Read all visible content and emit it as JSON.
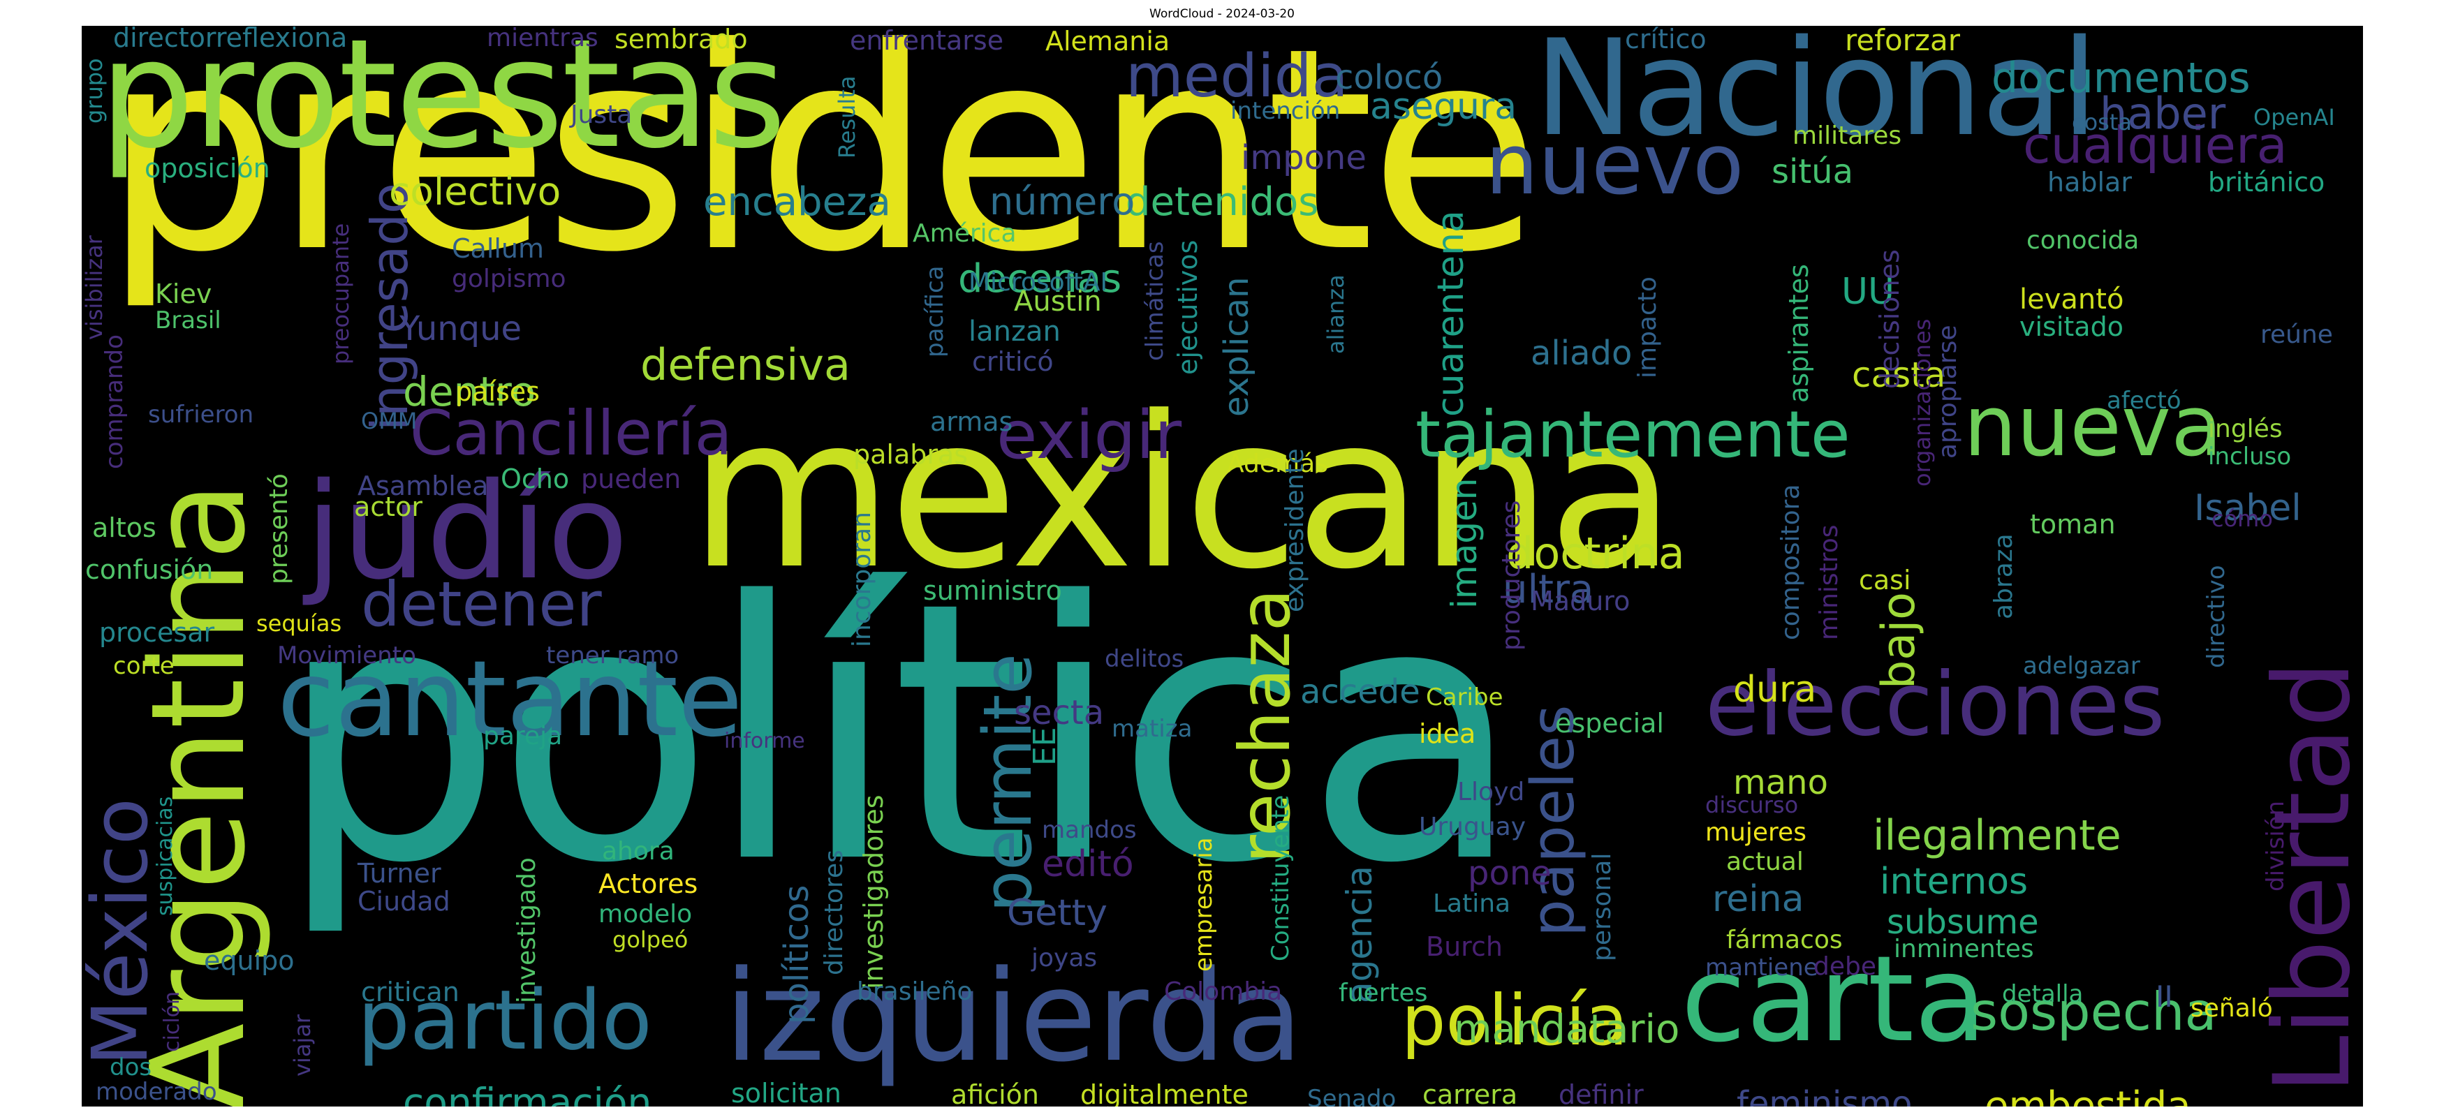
{
  "title": "WordCloud - 2024-03-20",
  "words": [
    {
      "text": "presidente",
      "color": "#e5e41a"
    },
    {
      "text": "política",
      "color": "#1f9a8a"
    },
    {
      "text": "mexicana",
      "color": "#c8e020"
    },
    {
      "text": "protestas",
      "color": "#8fd744"
    },
    {
      "text": "Nacional",
      "color": "#31688e"
    },
    {
      "text": "Argentina",
      "color": "#addc30"
    },
    {
      "text": "judío",
      "color": "#472d7b"
    },
    {
      "text": "cantante",
      "color": "#2c728e"
    },
    {
      "text": "carta",
      "color": "#35b779"
    },
    {
      "text": "izquierda",
      "color": "#3b528b"
    },
    {
      "text": "partido",
      "color": "#2c728e"
    },
    {
      "text": "elecciones",
      "color": "#472d7b"
    },
    {
      "text": "Libertad",
      "color": "#481a6c"
    },
    {
      "text": "nueva",
      "color": "#6ece58"
    },
    {
      "text": "nuevo",
      "color": "#3b528b"
    },
    {
      "text": "México",
      "color": "#414487"
    },
    {
      "text": "medida",
      "color": "#3e4a89"
    },
    {
      "text": "tajantemente",
      "color": "#35b779"
    },
    {
      "text": "Cancillería",
      "color": "#482878"
    },
    {
      "text": "exigir",
      "color": "#482878"
    },
    {
      "text": "policía",
      "color": "#d0e11c"
    },
    {
      "text": "rechaza",
      "color": "#b5de2b"
    },
    {
      "text": "permite",
      "color": "#2a788e"
    },
    {
      "text": "detener",
      "color": "#404387"
    },
    {
      "text": "sospecha",
      "color": "#4ac16d"
    },
    {
      "text": "cualquiera",
      "color": "#482071"
    },
    {
      "text": "documentos",
      "color": "#23898e"
    },
    {
      "text": "haber",
      "color": "#3e4989"
    },
    {
      "text": "papeles",
      "color": "#3b528b"
    },
    {
      "text": "ingresado",
      "color": "#414487"
    },
    {
      "text": "colectivo",
      "color": "#bddf26"
    },
    {
      "text": "defensiva",
      "color": "#a2da37"
    },
    {
      "text": "doctrina",
      "color": "#bddf26"
    },
    {
      "text": "dentro",
      "color": "#7ad151"
    },
    {
      "text": "cuarentena",
      "color": "#1fa187"
    },
    {
      "text": "ilegalmente",
      "color": "#84d44b"
    },
    {
      "text": "confirmación",
      "color": "#1f9e89"
    },
    {
      "text": "mandatario",
      "color": "#6ece58"
    },
    {
      "text": "embestida",
      "color": "#d5e21a"
    },
    {
      "text": "encabeza",
      "color": "#277f8e"
    },
    {
      "text": "decenas",
      "color": "#35b779"
    },
    {
      "text": "detenidos",
      "color": "#3bbb75"
    },
    {
      "text": "número",
      "color": "#2e6f8e"
    },
    {
      "text": "colocó",
      "color": "#2f6c8e"
    },
    {
      "text": "asegura",
      "color": "#25838e"
    },
    {
      "text": "impone",
      "color": "#443a83"
    },
    {
      "text": "Yunque",
      "color": "#414487"
    },
    {
      "text": "explican",
      "color": "#2b758e"
    },
    {
      "text": "aliado",
      "color": "#2d708e"
    },
    {
      "text": "casta",
      "color": "#c0df25"
    },
    {
      "text": "bajo",
      "color": "#9fda3a"
    },
    {
      "text": "UU",
      "color": "#23a983"
    },
    {
      "text": "Isabel",
      "color": "#33638d"
    },
    {
      "text": "ultra",
      "color": "#3a538b"
    },
    {
      "text": "imagen",
      "color": "#25ac82"
    },
    {
      "text": "accede",
      "color": "#287c8e"
    },
    {
      "text": "secta",
      "color": "#443983"
    },
    {
      "text": "dura",
      "color": "#d5e21a"
    },
    {
      "text": "internos",
      "color": "#22a785"
    },
    {
      "text": "subsume",
      "color": "#27ad81"
    },
    {
      "text": "reina",
      "color": "#2e6e8e"
    },
    {
      "text": "editó",
      "color": "#481f70"
    },
    {
      "text": "Getty",
      "color": "#3c4f8a"
    },
    {
      "text": "mano",
      "color": "#a5db36"
    },
    {
      "text": "pone",
      "color": "#482576"
    },
    {
      "text": "agencia",
      "color": "#2a768e"
    },
    {
      "text": "políticos",
      "color": "#30698e"
    },
    {
      "text": "feminismo",
      "color": "#3e4989"
    },
    {
      "text": "EE",
      "color": "#1fa088"
    },
    {
      "text": "II",
      "color": "#3b528b"
    },
    {
      "text": "sitúa",
      "color": "#46c06f"
    },
    {
      "text": "directorreflexiona",
      "color": "#297b8e"
    },
    {
      "text": "mientras",
      "color": "#46327e"
    },
    {
      "text": "sembrado",
      "color": "#c2df23"
    },
    {
      "text": "enfrentarse",
      "color": "#453781"
    },
    {
      "text": "Alemania",
      "color": "#d2e21b"
    },
    {
      "text": "crítico",
      "color": "#2e6d8e"
    },
    {
      "text": "reforzar",
      "color": "#c8e020"
    },
    {
      "text": "Resulta",
      "color": "#287d8e"
    },
    {
      "text": "Justa",
      "color": "#3f4788"
    },
    {
      "text": "intención",
      "color": "#2f6b8e"
    },
    {
      "text": "militares",
      "color": "#9bd93c"
    },
    {
      "text": "costa",
      "color": "#31668e"
    },
    {
      "text": "OpenAI",
      "color": "#25858e"
    },
    {
      "text": "hablar",
      "color": "#2e6f8e"
    },
    {
      "text": "británico",
      "color": "#22a884"
    },
    {
      "text": "oposición",
      "color": "#2ab07f"
    },
    {
      "text": "Callum",
      "color": "#34618d"
    },
    {
      "text": "América",
      "color": "#56c667"
    },
    {
      "text": "MicrosoftAI",
      "color": "#2a788e"
    },
    {
      "text": "Austin",
      "color": "#8fd744"
    },
    {
      "text": "climáticas",
      "color": "#3e4a89"
    },
    {
      "text": "ejecutivos",
      "color": "#20928c"
    },
    {
      "text": "pacífica",
      "color": "#31678e"
    },
    {
      "text": "golpismo",
      "color": "#472c7a"
    },
    {
      "text": "preocupante",
      "color": "#472e7c"
    },
    {
      "text": "visibilizar",
      "color": "#46327e"
    },
    {
      "text": "grupo",
      "color": "#23898e"
    },
    {
      "text": "Kiev",
      "color": "#7ad151"
    },
    {
      "text": "Brasil",
      "color": "#4ec36b"
    },
    {
      "text": "lanzan",
      "color": "#26828e"
    },
    {
      "text": "criticó",
      "color": "#404688"
    },
    {
      "text": "alianza",
      "color": "#2a768e"
    },
    {
      "text": "impacto",
      "color": "#33628d"
    },
    {
      "text": "aspirantes",
      "color": "#35b779"
    },
    {
      "text": "decisiones",
      "color": "#453882"
    },
    {
      "text": "organizaciones",
      "color": "#482576"
    },
    {
      "text": "apropiarse",
      "color": "#404588"
    },
    {
      "text": "conocida",
      "color": "#52c569"
    },
    {
      "text": "levantó",
      "color": "#cde11d"
    },
    {
      "text": "visitado",
      "color": "#2ab07f"
    },
    {
      "text": "reúne",
      "color": "#38598c"
    },
    {
      "text": "afectó",
      "color": "#27808e"
    },
    {
      "text": "inglés",
      "color": "#97d83f"
    },
    {
      "text": "incluso",
      "color": "#3bbb75"
    },
    {
      "text": "cómo",
      "color": "#482677"
    },
    {
      "text": "directivo",
      "color": "#31688e"
    },
    {
      "text": "países",
      "color": "#d2e21b"
    },
    {
      "text": "sufrieron",
      "color": "#3c4f8a"
    },
    {
      "text": "comprando",
      "color": "#472d7b"
    },
    {
      "text": "OMM",
      "color": "#33628d"
    },
    {
      "text": "armas",
      "color": "#2c728e"
    },
    {
      "text": "palabras",
      "color": "#bade28"
    },
    {
      "text": "Además",
      "color": "#cde11d"
    },
    {
      "text": "Asamblea",
      "color": "#414487"
    },
    {
      "text": "Ocho",
      "color": "#3aba76"
    },
    {
      "text": "pueden",
      "color": "#482878"
    },
    {
      "text": "actor",
      "color": "#a8db34"
    },
    {
      "text": "presentó",
      "color": "#6ece58"
    },
    {
      "text": "altos",
      "color": "#5ec962"
    },
    {
      "text": "confusión",
      "color": "#50c46a"
    },
    {
      "text": "suministro",
      "color": "#3dbc74"
    },
    {
      "text": "incorporan",
      "color": "#2a788e"
    },
    {
      "text": "expresidente",
      "color": "#2c718e"
    },
    {
      "text": "productores",
      "color": "#472f7d"
    },
    {
      "text": "compositora",
      "color": "#33638d"
    },
    {
      "text": "ministros",
      "color": "#482677"
    },
    {
      "text": "abraza",
      "color": "#2a778e"
    },
    {
      "text": "toman",
      "color": "#63cb5f"
    },
    {
      "text": "casi",
      "color": "#c0df25"
    },
    {
      "text": "Maduro",
      "color": "#433e85"
    },
    {
      "text": "procesar",
      "color": "#24878e"
    },
    {
      "text": "sequías",
      "color": "#e0e318"
    },
    {
      "text": "corte",
      "color": "#bddf26"
    },
    {
      "text": "Movimiento",
      "color": "#443983"
    },
    {
      "text": "tener ramo",
      "color": "#3e4a89"
    },
    {
      "text": "delitos",
      "color": "#3f4788"
    },
    {
      "text": "adelgazar",
      "color": "#2e6d8e"
    },
    {
      "text": "suspicacias",
      "color": "#1f958b"
    },
    {
      "text": "pareja",
      "color": "#20a386"
    },
    {
      "text": "informe",
      "color": "#46337f"
    },
    {
      "text": "matiza",
      "color": "#2f6c8e"
    },
    {
      "text": "Caribe",
      "color": "#bade28"
    },
    {
      "text": "idea",
      "color": "#e0e318"
    },
    {
      "text": "especial",
      "color": "#48c16e"
    },
    {
      "text": "Lloyd",
      "color": "#3f4788"
    },
    {
      "text": "discurso",
      "color": "#472f7d"
    },
    {
      "text": "mujeres",
      "color": "#efe51c"
    },
    {
      "text": "actual",
      "color": "#90d743"
    },
    {
      "text": "división",
      "color": "#481b6d"
    },
    {
      "text": "ciclón",
      "color": "#472d7b"
    },
    {
      "text": "investigado",
      "color": "#52c569"
    },
    {
      "text": "ahora",
      "color": "#31b57b"
    },
    {
      "text": "Actores",
      "color": "#fde725"
    },
    {
      "text": "Turner",
      "color": "#3b528b"
    },
    {
      "text": "Ciudad",
      "color": "#3e4989"
    },
    {
      "text": "modelo",
      "color": "#31b57b"
    },
    {
      "text": "golpeó",
      "color": "#c0df25"
    },
    {
      "text": "mandos",
      "color": "#3e4a89"
    },
    {
      "text": "directores",
      "color": "#2c728e"
    },
    {
      "text": "investigadores",
      "color": "#7ad151"
    },
    {
      "text": "empresaria",
      "color": "#e5e419"
    },
    {
      "text": "Constituyente",
      "color": "#25ac82"
    },
    {
      "text": "Uruguay",
      "color": "#3a548c"
    },
    {
      "text": "Latina",
      "color": "#287c8e"
    },
    {
      "text": "personal",
      "color": "#2f6b8e"
    },
    {
      "text": "fármacos",
      "color": "#a8db34"
    },
    {
      "text": "inminentes",
      "color": "#3dbc74"
    },
    {
      "text": "mantiene",
      "color": "#3b518b"
    },
    {
      "text": "Burch",
      "color": "#482071"
    },
    {
      "text": "equipo",
      "color": "#2d708e"
    },
    {
      "text": "joyas",
      "color": "#3f4788"
    },
    {
      "text": "viajar",
      "color": "#453781"
    },
    {
      "text": "critican",
      "color": "#2a788e"
    },
    {
      "text": "brasileño",
      "color": "#2e6e8e"
    },
    {
      "text": "Colombia",
      "color": "#482878"
    },
    {
      "text": "fuertes",
      "color": "#33b67a"
    },
    {
      "text": "debe",
      "color": "#482677"
    },
    {
      "text": "detalla",
      "color": "#3aba76"
    },
    {
      "text": "señaló",
      "color": "#e2e418"
    },
    {
      "text": "dos",
      "color": "#21918c"
    },
    {
      "text": "moderado",
      "color": "#3b528b"
    },
    {
      "text": "solicitan",
      "color": "#22a785"
    },
    {
      "text": "afición",
      "color": "#b0dd2f"
    },
    {
      "text": "digitalmente",
      "color": "#c5e021"
    },
    {
      "text": "Senado",
      "color": "#2f6b8e"
    },
    {
      "text": "carrera",
      "color": "#a0da39"
    },
    {
      "text": "definir",
      "color": "#46327e"
    }
  ]
}
